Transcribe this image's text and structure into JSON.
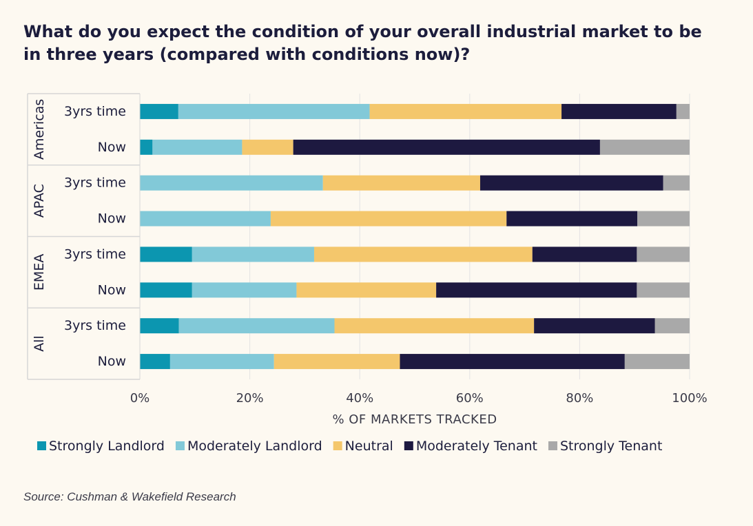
{
  "title": "What do you expect the condition of your overall industrial market to be in three years (compared with conditions now)?",
  "source": "Source: Cushman & Wakefield Research",
  "chart_data": {
    "type": "bar",
    "orientation": "horizontal",
    "stacked": true,
    "xlabel": "% OF MARKETS TRACKED",
    "xlim": [
      0,
      100
    ],
    "x_ticks": [
      "0%",
      "20%",
      "40%",
      "60%",
      "80%",
      "100%"
    ],
    "groups": [
      {
        "name": "Americas",
        "rows": [
          "3yrs time",
          "Now"
        ]
      },
      {
        "name": "APAC",
        "rows": [
          "3yrs time",
          "Now"
        ]
      },
      {
        "name": "EMEA",
        "rows": [
          "3yrs time",
          "Now"
        ]
      },
      {
        "name": "All",
        "rows": [
          "3yrs time",
          "Now"
        ]
      }
    ],
    "categories": [
      "Americas 3yrs time",
      "Americas Now",
      "APAC 3yrs time",
      "APAC Now",
      "EMEA 3yrs time",
      "EMEA Now",
      "All 3yrs time",
      "All Now"
    ],
    "series": [
      {
        "name": "Strongly Landlord",
        "color": "#0c96b0",
        "values": [
          7,
          2.3,
          0,
          0,
          9.5,
          9.5,
          7.1,
          5.5
        ]
      },
      {
        "name": "Moderately Landlord",
        "color": "#82c9d8",
        "values": [
          34.8,
          16.3,
          33.3,
          23.8,
          22.2,
          19.0,
          28.3,
          18.9
        ]
      },
      {
        "name": "Neutral",
        "color": "#f4c76c",
        "values": [
          34.9,
          9.3,
          28.6,
          42.9,
          39.7,
          25.4,
          36.3,
          22.9
        ]
      },
      {
        "name": "Moderately Tenant",
        "color": "#1d1940",
        "values": [
          20.9,
          55.8,
          33.3,
          23.8,
          19.0,
          36.5,
          22.0,
          40.9
        ]
      },
      {
        "name": "Strongly Tenant",
        "color": "#a9a9a9",
        "values": [
          2.4,
          16.3,
          4.8,
          9.5,
          9.6,
          9.6,
          6.3,
          11.8
        ]
      }
    ],
    "legend_position": "bottom",
    "grid": true
  }
}
